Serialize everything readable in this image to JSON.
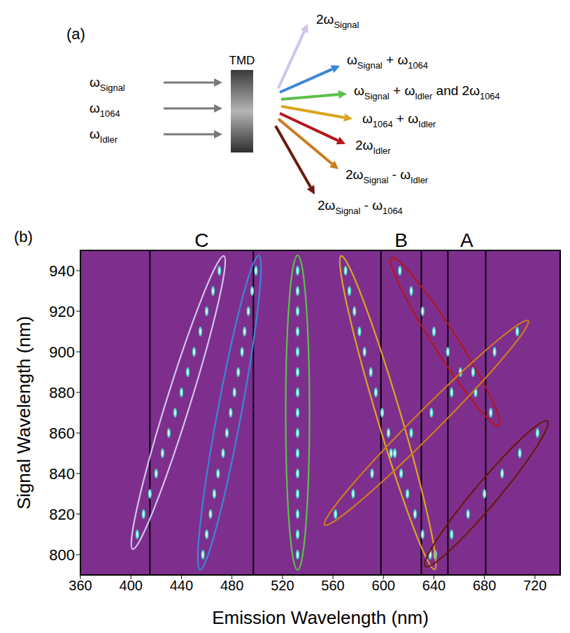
{
  "panel_a": {
    "letter": "(a)",
    "sample": "TMD",
    "inputs": [
      [
        {
          "text": "ω"
        },
        {
          "sub": "Signal"
        }
      ],
      [
        {
          "text": "ω"
        },
        {
          "sub": "1064"
        }
      ],
      [
        {
          "text": "ω"
        },
        {
          "sub": "Idler"
        }
      ]
    ],
    "outputs": [
      [
        {
          "text": "2ω"
        },
        {
          "sub": "Signal"
        }
      ],
      [
        {
          "text": "ω"
        },
        {
          "sub": "Signal"
        },
        {
          "text": " + ω"
        },
        {
          "sub": "1064"
        }
      ],
      [
        {
          "text": "ω"
        },
        {
          "sub": "Signal"
        },
        {
          "text": " + ω"
        },
        {
          "sub": "Idler"
        },
        {
          "text": " and 2ω"
        },
        {
          "sub": "1064"
        }
      ],
      [
        {
          "text": "ω"
        },
        {
          "sub": "1064"
        },
        {
          "text": " + ω"
        },
        {
          "sub": "Idler"
        }
      ],
      [
        {
          "text": "2ω"
        },
        {
          "sub": "Idler"
        }
      ],
      [
        {
          "text": "2ω"
        },
        {
          "sub": "Signal"
        },
        {
          "text": " - ω"
        },
        {
          "sub": "Idler"
        }
      ],
      [
        {
          "text": "2ω"
        },
        {
          "sub": "Signal"
        },
        {
          "text": " - ω"
        },
        {
          "sub": "1064"
        }
      ]
    ]
  },
  "chart_data": {
    "panel_letter": "(b)",
    "type": "scatter",
    "x_label": "Emission Wavelength (nm)",
    "y_label": "Signal Wavelength (nm)",
    "xlim": [
      360,
      740
    ],
    "xticks": [
      360,
      400,
      440,
      480,
      520,
      560,
      600,
      640,
      680,
      720
    ],
    "ylim": [
      790,
      950
    ],
    "yticks": [
      800,
      820,
      840,
      860,
      880,
      900,
      920,
      940
    ],
    "grid": false,
    "regions": [
      {
        "label": "C",
        "x1": 415,
        "x2": 497
      },
      {
        "label": "B",
        "x1": 598,
        "x2": 630
      },
      {
        "label": "A",
        "x1": 651,
        "x2": 681
      }
    ],
    "series": [
      {
        "color": "#d2c2ee",
        "x": [
          405,
          410,
          415,
          420,
          425,
          430,
          435,
          440,
          445,
          450,
          455,
          460,
          465,
          470
        ],
        "y": [
          810,
          820,
          830,
          840,
          850,
          860,
          870,
          880,
          890,
          900,
          910,
          920,
          930,
          940
        ]
      },
      {
        "color": "#3a86d6",
        "x": [
          457,
          460,
          463,
          466,
          469,
          473,
          476,
          479,
          482,
          485,
          488,
          490,
          493,
          496,
          499
        ],
        "y": [
          800,
          810,
          820,
          830,
          840,
          850,
          860,
          870,
          880,
          890,
          900,
          910,
          920,
          930,
          940
        ]
      },
      {
        "color": "#5cbf4a",
        "x": [
          532,
          532,
          532,
          532,
          532,
          532,
          532,
          532,
          532,
          532,
          532,
          532,
          532,
          532,
          532
        ],
        "y": [
          800,
          810,
          820,
          830,
          840,
          850,
          860,
          870,
          880,
          890,
          900,
          910,
          920,
          930,
          940
        ]
      },
      {
        "color": "#d9a520",
        "x": [
          637,
          631,
          625,
          619,
          614,
          609,
          604,
          599,
          594,
          590,
          585,
          581,
          577,
          573,
          570
        ],
        "y": [
          800,
          810,
          820,
          830,
          840,
          850,
          860,
          870,
          880,
          890,
          900,
          910,
          920,
          930,
          940
        ]
      },
      {
        "color": "#b3171c",
        "x": [
          685,
          673,
          661,
          651,
          640,
          631,
          622,
          613
        ],
        "y": [
          870,
          880,
          890,
          900,
          910,
          920,
          930,
          940
        ]
      },
      {
        "color": "#cc7a1e",
        "x": [
          562,
          576,
          591,
          606,
          622,
          638,
          654,
          671,
          688,
          706
        ],
        "y": [
          820,
          830,
          840,
          850,
          860,
          870,
          880,
          890,
          900,
          910
        ]
      },
      {
        "color": "#6b1a0c",
        "x": [
          641,
          654,
          667,
          680,
          694,
          708,
          722
        ],
        "y": [
          800,
          810,
          820,
          830,
          840,
          850,
          860
        ]
      }
    ]
  }
}
